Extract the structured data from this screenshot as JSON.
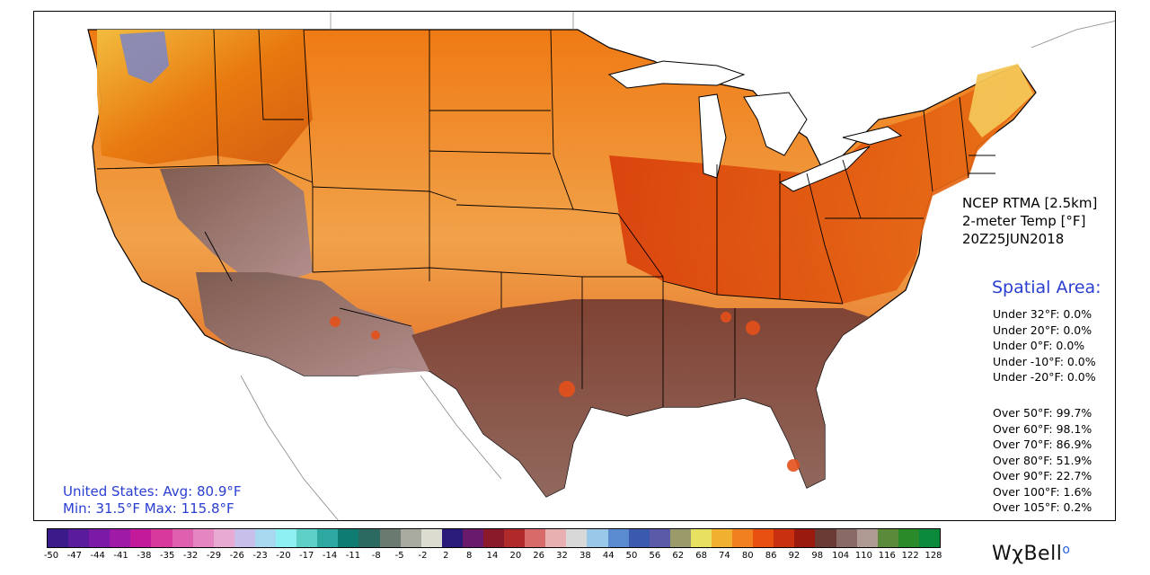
{
  "map_info": {
    "model": "NCEP RTMA [2.5km]",
    "variable": "2-meter Temp [°F]",
    "valid_time": "20Z25JUN2018"
  },
  "spatial_area": {
    "title": "Spatial Area:",
    "under": [
      "Under 32°F: 0.0%",
      "Under 20°F: 0.0%",
      "Under 0°F: 0.0%",
      "Under -10°F: 0.0%",
      "Under -20°F: 0.0%"
    ],
    "over": [
      "Over 50°F: 99.7%",
      "Over 60°F: 98.1%",
      "Over 70°F: 86.9%",
      "Over 80°F: 51.9%",
      "Over 90°F: 22.7%",
      "Over 100°F: 1.6%",
      "Over 105°F: 0.2%"
    ]
  },
  "us_stats": {
    "line1": "United States: Avg:  80.9°F",
    "line2": "Min:  31.5°F Max: 115.8°F"
  },
  "colorbar": {
    "labels": [
      "-50",
      "-47",
      "-44",
      "-41",
      "-38",
      "-35",
      "-32",
      "-29",
      "-26",
      "-23",
      "-20",
      "-17",
      "-14",
      "-11",
      "-8",
      "-5",
      "-2",
      "2",
      "8",
      "14",
      "20",
      "26",
      "32",
      "38",
      "44",
      "50",
      "56",
      "62",
      "68",
      "74",
      "80",
      "86",
      "92",
      "98",
      "104",
      "110",
      "116",
      "122",
      "128"
    ],
    "colors": [
      "#3b1a8a",
      "#5a1a9c",
      "#7c1aa8",
      "#a01aa8",
      "#c21a9a",
      "#d83a9c",
      "#e060b0",
      "#e486c2",
      "#e8aad2",
      "#c8c0ea",
      "#a8d8f0",
      "#8ef0f0",
      "#5ed0c8",
      "#2ea8a0",
      "#0e7c72",
      "#2a6a60",
      "#6a7a70",
      "#a8aaa0",
      "#dcdcd0",
      "#2a1a7a",
      "#6a1a6a",
      "#8a1a2a",
      "#b02a2a",
      "#d86a6a",
      "#e8b0b0",
      "#d8d8d8",
      "#9ac8e8",
      "#5a8ad0",
      "#3a5ab0",
      "#5a5aa8",
      "#9a9a6a",
      "#e8e060",
      "#f0b030",
      "#f08020",
      "#e85010",
      "#c83010",
      "#9a1a10",
      "#6a3a34",
      "#8a6a64",
      "#b09a94",
      "#5a8a3a",
      "#2a8a2a",
      "#0a8a3a"
    ]
  },
  "brand": {
    "name": "WχBell",
    "mark": "o"
  }
}
